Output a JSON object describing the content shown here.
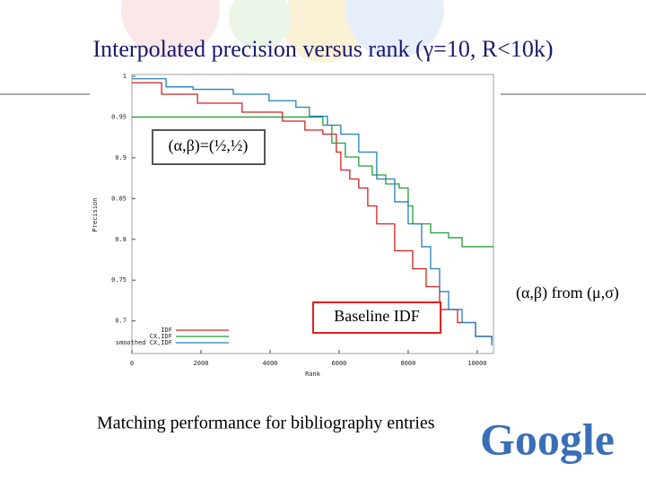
{
  "slide_title": "Interpolated precision versus rank (γ=10, R<10k)",
  "caption": "Matching performance for bibliography entries",
  "logo": "Google",
  "chart_data": {
    "type": "line",
    "x_label": "Rank",
    "y_label": "Precision",
    "annotations": [
      "(α,β)=(½,½)",
      "Baseline IDF",
      "(α,β) from (μ,σ)"
    ],
    "xlim": [
      0,
      10470
    ],
    "ylim": [
      0.66,
      1.0
    ],
    "xticks": [
      0,
      2000,
      4000,
      6000,
      8000,
      10000
    ],
    "yticks": [
      1,
      0.95,
      0.9,
      0.85,
      0.8,
      0.75,
      0.7
    ],
    "legend": "lower-left",
    "series": [
      {
        "name": "IDF",
        "color": "#d42020",
        "x": [
          0,
          860,
          1900,
          3190,
          4360,
          5010,
          5530,
          5920,
          6050,
          6310,
          6570,
          6830,
          7090,
          7610,
          8130,
          8520,
          8910,
          9430,
          9950,
          10420
        ],
        "values": [
          0.992,
          0.978,
          0.967,
          0.956,
          0.945,
          0.934,
          0.929,
          0.907,
          0.885,
          0.874,
          0.863,
          0.841,
          0.819,
          0.786,
          0.764,
          0.742,
          0.714,
          0.698,
          0.681,
          0.676
        ]
      },
      {
        "name": "CX,IDF",
        "color": "#20a030",
        "x": [
          0,
          5400,
          5530,
          5790,
          6180,
          6570,
          6960,
          7350,
          7740,
          8000,
          8130,
          8650,
          9170,
          9560,
          10470
        ],
        "values": [
          0.95,
          0.95,
          0.94,
          0.918,
          0.901,
          0.89,
          0.879,
          0.868,
          0.863,
          0.841,
          0.819,
          0.808,
          0.802,
          0.791,
          0.791
        ]
      },
      {
        "name": "smoothed CX,IDF",
        "color": "#2080c0",
        "x": [
          0,
          990,
          1770,
          2935,
          3970,
          4750,
          5140,
          5660,
          6050,
          6570,
          7090,
          7610,
          8000,
          8390,
          8650,
          8910,
          9170,
          9560,
          9950,
          10420
        ],
        "values": [
          0.997,
          0.987,
          0.984,
          0.978,
          0.97,
          0.962,
          0.951,
          0.94,
          0.929,
          0.907,
          0.874,
          0.846,
          0.819,
          0.791,
          0.764,
          0.736,
          0.714,
          0.698,
          0.681,
          0.67
        ]
      }
    ]
  }
}
